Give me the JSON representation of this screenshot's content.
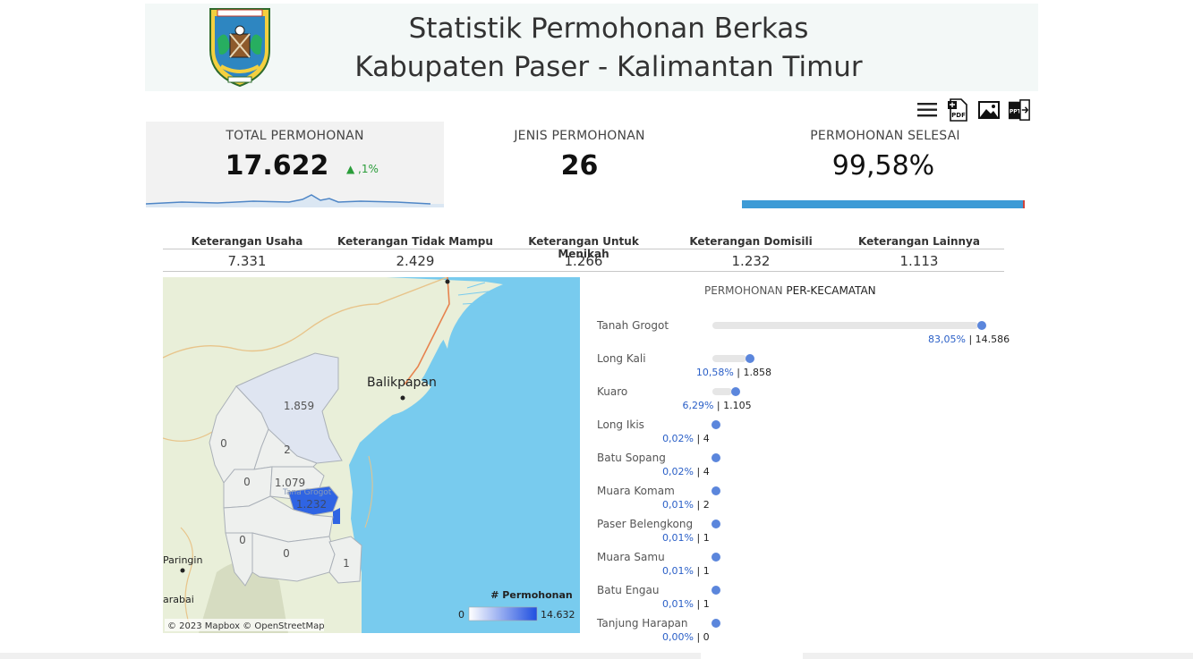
{
  "header": {
    "title_line1": "Statistik Permohonan Berkas",
    "title_line2": "Kabupaten Paser - Kalimantan Timur",
    "logo_icon": "kabupaten-paser-emblem"
  },
  "toolbar": {
    "icons": [
      "menu-icon",
      "pdf-export-icon",
      "image-export-icon",
      "ppt-export-icon"
    ],
    "pdf_label": "PDF",
    "ppt_label": "PPT"
  },
  "kpis": {
    "total": {
      "label": "TOTAL PERMOHONAN",
      "value": "17.622",
      "change": "▲ ,1%"
    },
    "jenis": {
      "label": "JENIS PERMOHONAN",
      "value": "26"
    },
    "selesai": {
      "label": "PERMOHONAN SELESAI",
      "value": "99,58%",
      "progress": 0.9958
    }
  },
  "categories": [
    {
      "label": "Keterangan Usaha",
      "value": "7.331"
    },
    {
      "label": "Keterangan Tidak Mampu",
      "value": "2.429"
    },
    {
      "label": "Keterangan Untuk Menikah",
      "value": "1.266"
    },
    {
      "label": "Keterangan Domisili",
      "value": "1.232"
    },
    {
      "label": "Keterangan Lainnya",
      "value": "1.113"
    }
  ],
  "map": {
    "city_label": "Balikpapan",
    "town1": "Paringin",
    "town2": "arabai",
    "region_values": [
      "1.859",
      "0",
      "2",
      "0",
      "1.079",
      "1.232",
      "0",
      "0",
      "1"
    ],
    "overlay_label": "Tana Grogot",
    "legend_title": "# Permohonan",
    "legend_min": "0",
    "legend_max": "14.632",
    "attribution": "© 2023 Mapbox © OpenStreetMap",
    "colors": {
      "sea": "#78cbee",
      "land": "#e9efd9",
      "region": "#eef0ee",
      "highlight": "#2f64e3"
    }
  },
  "kecamatan": {
    "title_part1": "PERMOHONAN ",
    "title_part2": "PER-KECAMATAN",
    "items": [
      {
        "name": "Tanah Grogot",
        "pct": "83,05%",
        "count": "14.586",
        "share": 0.8305
      },
      {
        "name": "Long Kali",
        "pct": "10,58%",
        "count": "1.858",
        "share": 0.1058
      },
      {
        "name": "Kuaro",
        "pct": "6,29%",
        "count": "1.105",
        "share": 0.0629
      },
      {
        "name": "Long Ikis",
        "pct": "0,02%",
        "count": "4",
        "share": 0.0002
      },
      {
        "name": "Batu Sopang",
        "pct": "0,02%",
        "count": "4",
        "share": 0.0002
      },
      {
        "name": "Muara Komam",
        "pct": "0,01%",
        "count": "2",
        "share": 0.0001
      },
      {
        "name": "Paser Belengkong",
        "pct": "0,01%",
        "count": "1",
        "share": 0.0001
      },
      {
        "name": "Muara Samu",
        "pct": "0,01%",
        "count": "1",
        "share": 0.0001
      },
      {
        "name": "Batu Engau",
        "pct": "0,01%",
        "count": "1",
        "share": 0.0001
      },
      {
        "name": "Tanjung Harapan",
        "pct": "0,00%",
        "count": "0",
        "share": 0.0
      }
    ]
  }
}
